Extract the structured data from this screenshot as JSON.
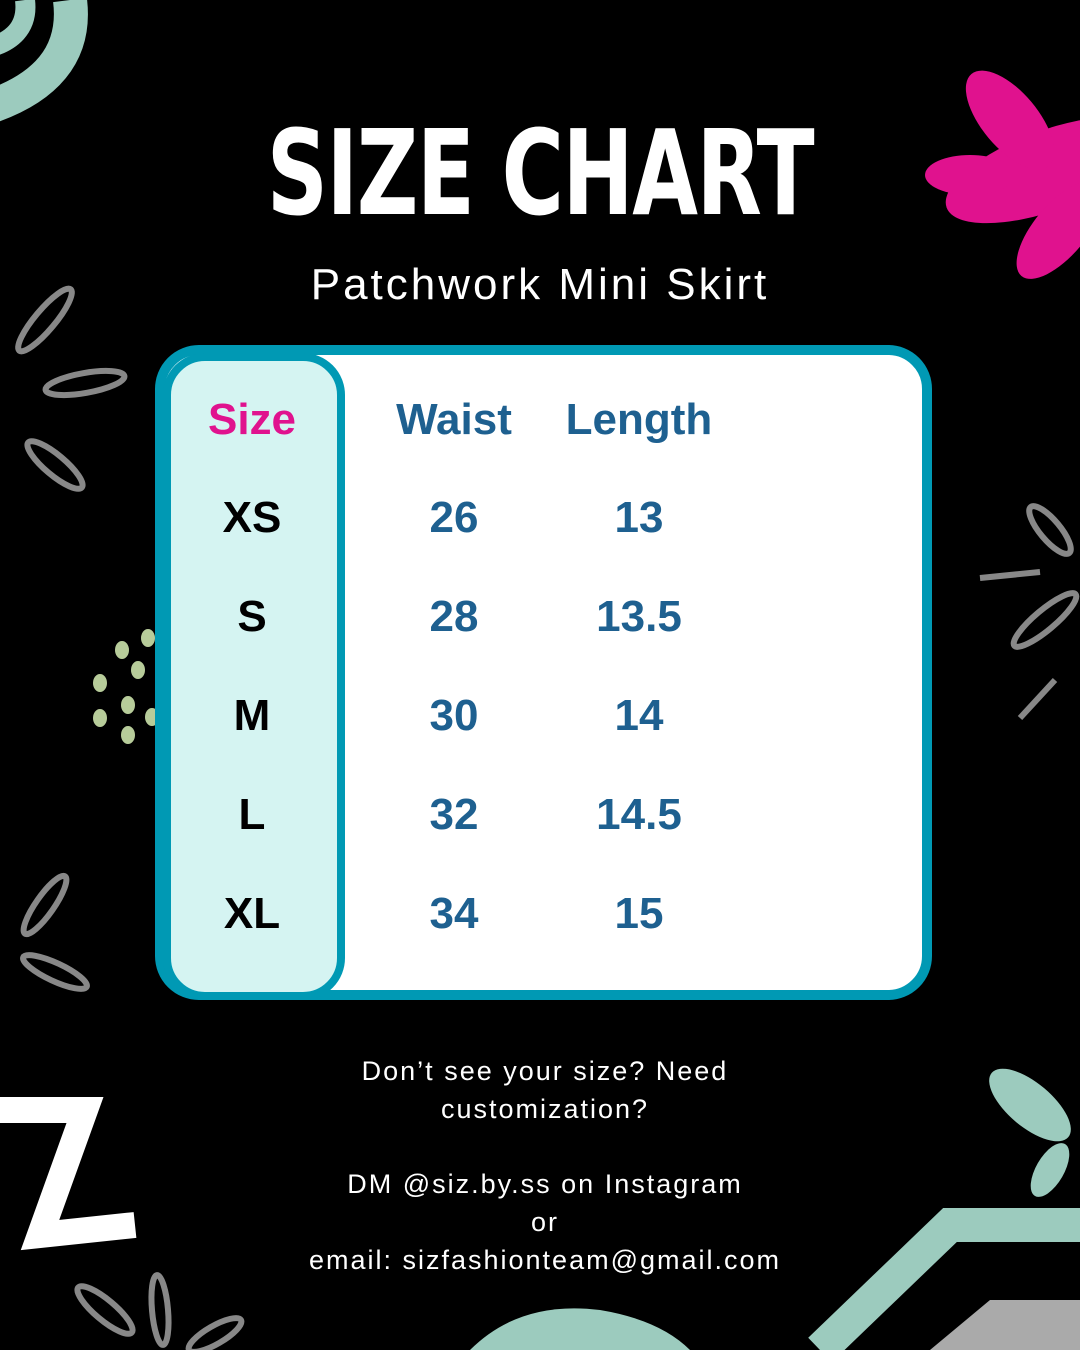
{
  "title": "SIZE CHART",
  "subtitle": "Patchwork Mini Skirt",
  "table": {
    "headers": [
      "Size",
      "Waist",
      "Length"
    ],
    "rows": [
      {
        "size": "XS",
        "waist": "26",
        "length": "13"
      },
      {
        "size": "S",
        "waist": "28",
        "length": "13.5"
      },
      {
        "size": "M",
        "waist": "30",
        "length": "14"
      },
      {
        "size": "L",
        "waist": "32",
        "length": "14.5"
      },
      {
        "size": "XL",
        "waist": "34",
        "length": "15"
      }
    ]
  },
  "footer": {
    "line1": "Don’t see your size? Need",
    "line2": "customization?",
    "line3": "DM @siz.by.ss on Instagram",
    "line4": "or",
    "line5": "email: sizfashionteam@gmail.com"
  },
  "colors": {
    "background": "#000000",
    "border": "#0099B4",
    "size_column": "#D5F4F2",
    "size_header": "#E0128E",
    "values": "#1E6090",
    "accent_pink": "#E0128E",
    "accent_mint": "#9CCBBE"
  }
}
